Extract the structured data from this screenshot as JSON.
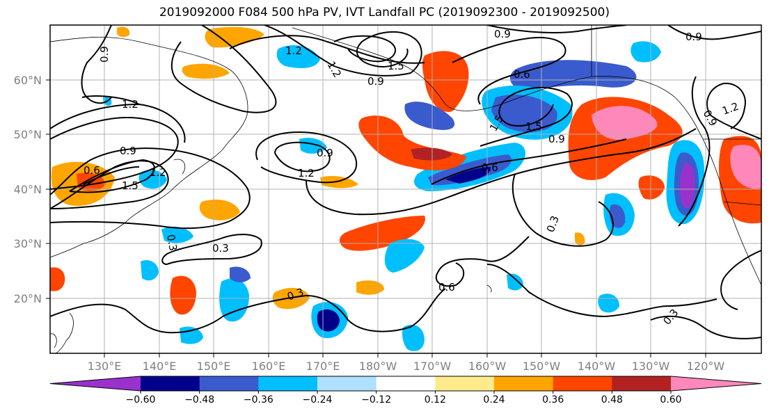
{
  "title": "2019092000 F084 500 hPa PV, IVT Landfall PC (2019092300 - 2019092500)",
  "map": {
    "lat_labels": [
      "60°N",
      "50°N",
      "40°N",
      "30°N",
      "20°N"
    ],
    "lon_labels": [
      "130°E",
      "140°E",
      "150°E",
      "160°E",
      "170°E",
      "180°W",
      "170°W",
      "160°W",
      "150°W",
      "140°W",
      "130°W",
      "120°W"
    ],
    "contour_labels": [
      "0.9",
      "0.9",
      "1.2",
      "1.2",
      "1.5",
      "0.9",
      "0.6",
      "0.9",
      "1.2",
      "1.5",
      "0.9",
      "1.2",
      "0.9",
      "1.2",
      "0.6",
      "1.5",
      "1.5",
      "0.9",
      "0.6",
      "1.2",
      "0.3",
      "0.3",
      "0.3",
      "0.6",
      "0.3",
      "0.3",
      "0.9"
    ]
  },
  "colorbar": {
    "colors": [
      "#9932cc",
      "#00008b",
      "#3a5bcd",
      "#00bfff",
      "#b0e0ff",
      "#ffffff",
      "#ffeb8a",
      "#ffa500",
      "#ff4500",
      "#b22222",
      "#ff88bb"
    ],
    "tick_labels": [
      "−0.60",
      "−0.48",
      "−0.36",
      "−0.24",
      "−0.12",
      "0.12",
      "0.24",
      "0.36",
      "0.48",
      "0.60"
    ]
  }
}
